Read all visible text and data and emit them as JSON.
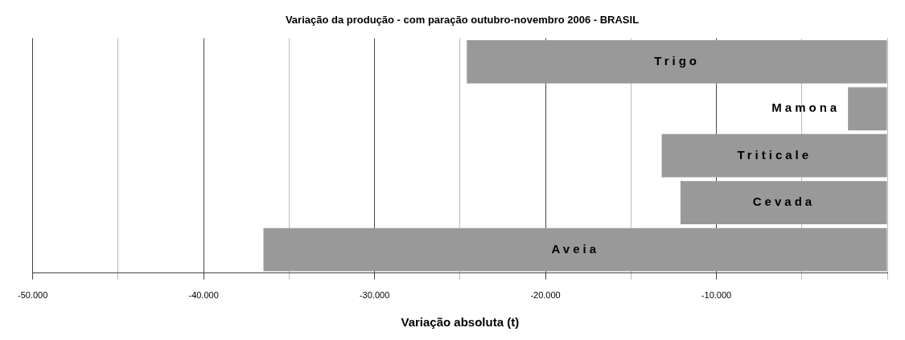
{
  "chart_data": {
    "type": "bar",
    "orientation": "horizontal",
    "title": "Variação da produção - com paração outubro-novembro 2006 - BRASIL",
    "xlabel": "Variação absoluta (t)",
    "categories": [
      "Trigo",
      "Mamona",
      "Triticale",
      "Cevada",
      "Aveia"
    ],
    "values": [
      -24600,
      -2300,
      -13200,
      -12100,
      -36500
    ],
    "color": "#999999",
    "xlim": [
      -50000,
      0
    ],
    "xticks": [
      {
        "value": -50000,
        "label": "-50.000"
      },
      {
        "value": -45000,
        "label": null
      },
      {
        "value": -40000,
        "label": "-40.000"
      },
      {
        "value": -35000,
        "label": null
      },
      {
        "value": -30000,
        "label": "-30.000"
      },
      {
        "value": -25000,
        "label": null
      },
      {
        "value": -20000,
        "label": "-20.000"
      },
      {
        "value": -15000,
        "label": null
      },
      {
        "value": -10000,
        "label": "-10.000"
      },
      {
        "value": -5000,
        "label": null
      },
      {
        "value": 0,
        "label": null
      }
    ],
    "grid": "x",
    "legend": false
  }
}
